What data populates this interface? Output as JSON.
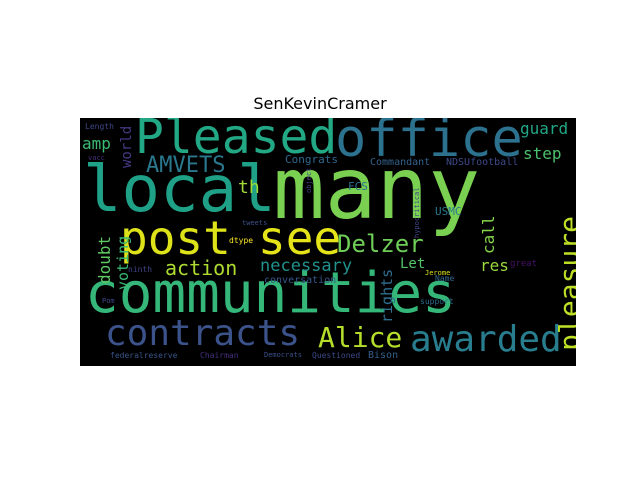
{
  "figure": {
    "title": "SenKevinCramer"
  },
  "wordcloud": {
    "words": [
      {
        "text": "many",
        "color": "#7ad151"
      },
      {
        "text": "communities",
        "color": "#35b779"
      },
      {
        "text": "local",
        "color": "#1fa187"
      },
      {
        "text": "office",
        "color": "#2c728e"
      },
      {
        "text": "Pleased",
        "color": "#22a884"
      },
      {
        "text": "post",
        "color": "#dde318"
      },
      {
        "text": "see",
        "color": "#e5e419"
      },
      {
        "text": "contracts",
        "color": "#3b528b"
      },
      {
        "text": "awarded",
        "color": "#287d8e"
      },
      {
        "text": "Alice",
        "color": "#b5de2b"
      },
      {
        "text": "Delzer",
        "color": "#6ece58"
      },
      {
        "text": "pleasure",
        "color": "#bddf26"
      },
      {
        "text": "action",
        "color": "#addc30"
      },
      {
        "text": "AMVETS",
        "color": "#2a788e"
      },
      {
        "text": "necessary",
        "color": "#21918c"
      },
      {
        "text": "th",
        "color": "#a2da37"
      },
      {
        "text": "guard",
        "color": "#21a685"
      },
      {
        "text": "step",
        "color": "#4ac16d"
      },
      {
        "text": "amp",
        "color": "#3dbc74"
      },
      {
        "text": "doubt",
        "color": "#5ec962"
      },
      {
        "text": "voting",
        "color": "#3aba76"
      },
      {
        "text": "call",
        "color": "#86d549"
      },
      {
        "text": "res",
        "color": "#9bd93c"
      },
      {
        "text": "Let",
        "color": "#52c569"
      },
      {
        "text": "rights",
        "color": "#2e6e8e"
      },
      {
        "text": "world",
        "color": "#443a83"
      },
      {
        "text": "Congrats",
        "color": "#31688e"
      },
      {
        "text": "Commandant",
        "color": "#34618d"
      },
      {
        "text": "NDSUfootball",
        "color": "#3e4989"
      },
      {
        "text": "FCS",
        "color": "#2d708e"
      },
      {
        "text": "USMC",
        "color": "#2a788e"
      },
      {
        "text": "conversation",
        "color": "#38588c"
      },
      {
        "text": "Bison",
        "color": "#355f8d"
      },
      {
        "text": "Questioned",
        "color": "#3e4a89"
      },
      {
        "text": "Democrats",
        "color": "#3b518b"
      },
      {
        "text": "federalreserve",
        "color": "#39568c"
      },
      {
        "text": "Chairman",
        "color": "#46307e"
      },
      {
        "text": "ninth",
        "color": "#414487"
      },
      {
        "text": "Length",
        "color": "#3e4989"
      },
      {
        "text": "vacc",
        "color": "#472d7b"
      },
      {
        "text": "tweets",
        "color": "#3b518b"
      },
      {
        "text": "object",
        "color": "#433e85"
      },
      {
        "text": "dtype",
        "color": "#fde725"
      },
      {
        "text": "hypocritical",
        "color": "#404688"
      },
      {
        "text": "Name",
        "color": "#31688e"
      },
      {
        "text": "Jerome",
        "color": "#d8e219"
      },
      {
        "text": "great",
        "color": "#471063"
      },
      {
        "text": "support",
        "color": "#2f6c8e"
      },
      {
        "text": "Pom",
        "color": "#3f4788"
      }
    ]
  }
}
